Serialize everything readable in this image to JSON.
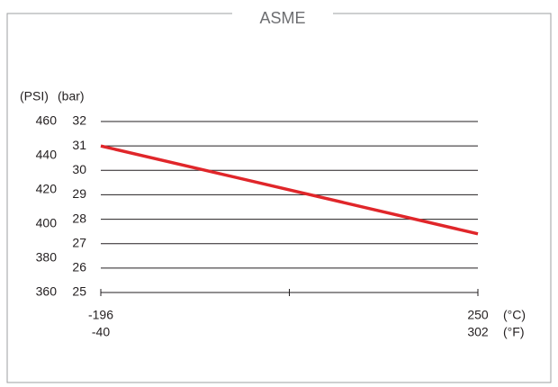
{
  "title": "ASME",
  "chart_data": {
    "type": "line",
    "title": "ASME",
    "axis_units": {
      "y_left_outer": "(PSI)",
      "y_left_inner": "(bar)",
      "x_primary": "(°C)",
      "x_secondary": "(°F)"
    },
    "y_bar_ticks": [
      "25",
      "26",
      "27",
      "28",
      "29",
      "30",
      "31",
      "32"
    ],
    "y_psi_ticks": [
      "360",
      "380",
      "400",
      "420",
      "440",
      "460"
    ],
    "x_primary_ticks": [
      "-196",
      "250"
    ],
    "x_secondary_ticks": [
      "-40",
      "302"
    ],
    "ylim": [
      25,
      32
    ],
    "y_psi_range": [
      360,
      460
    ],
    "xlim": [
      -196,
      250
    ],
    "grid": true,
    "series": [
      {
        "x": [
          -196,
          250
        ],
        "y": [
          31.0,
          27.4
        ],
        "color": "#e0262a"
      }
    ]
  },
  "colors": {
    "frame": "#9d9fa2",
    "axis": "#231f20",
    "grid": "#231f20",
    "line": "#e0262a",
    "title": "#6d6e71"
  }
}
